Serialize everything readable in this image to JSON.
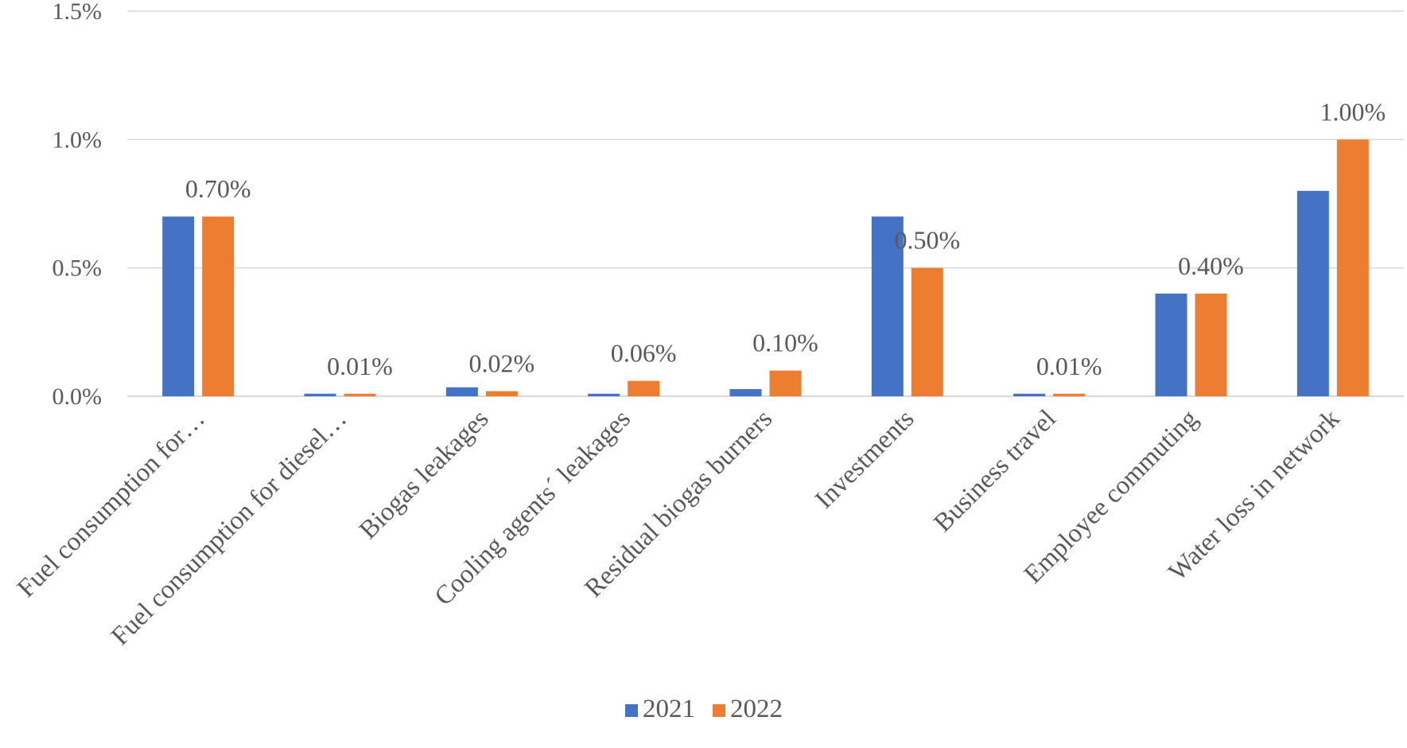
{
  "chart_data": {
    "type": "bar",
    "title": "",
    "xlabel": "",
    "ylabel": "",
    "categories": [
      "Fuel consumption for…",
      "Fuel consumption for diesel…",
      "Biogas leakages",
      "Cooling agents´ leakages",
      "Residual biogas burners",
      "Investments",
      "Business travel",
      "Employee commuting",
      "Water loss in network"
    ],
    "series": [
      {
        "name": "2021",
        "color": "#4472C4",
        "values": [
          0.7,
          0.01,
          0.035,
          0.01,
          0.028,
          0.7,
          0.01,
          0.4,
          0.8
        ]
      },
      {
        "name": "2022",
        "color": "#ED7D31",
        "values": [
          0.7,
          0.01,
          0.02,
          0.06,
          0.1,
          0.5,
          0.01,
          0.4,
          1.0
        ]
      }
    ],
    "data_labels": [
      "0.70%",
      "0.01%",
      "0.02%",
      "0.06%",
      "0.10%",
      "0.50%",
      "0.01%",
      "0.40%",
      "1.00%"
    ],
    "data_labels_series": "2022",
    "yticks": [
      "0.0%",
      "0.5%",
      "1.0%",
      "1.5%"
    ],
    "ytick_values": [
      0,
      0.5,
      1.0,
      1.5
    ],
    "ylim": [
      0,
      1.5
    ],
    "grid": true,
    "legend_position": "bottom"
  }
}
